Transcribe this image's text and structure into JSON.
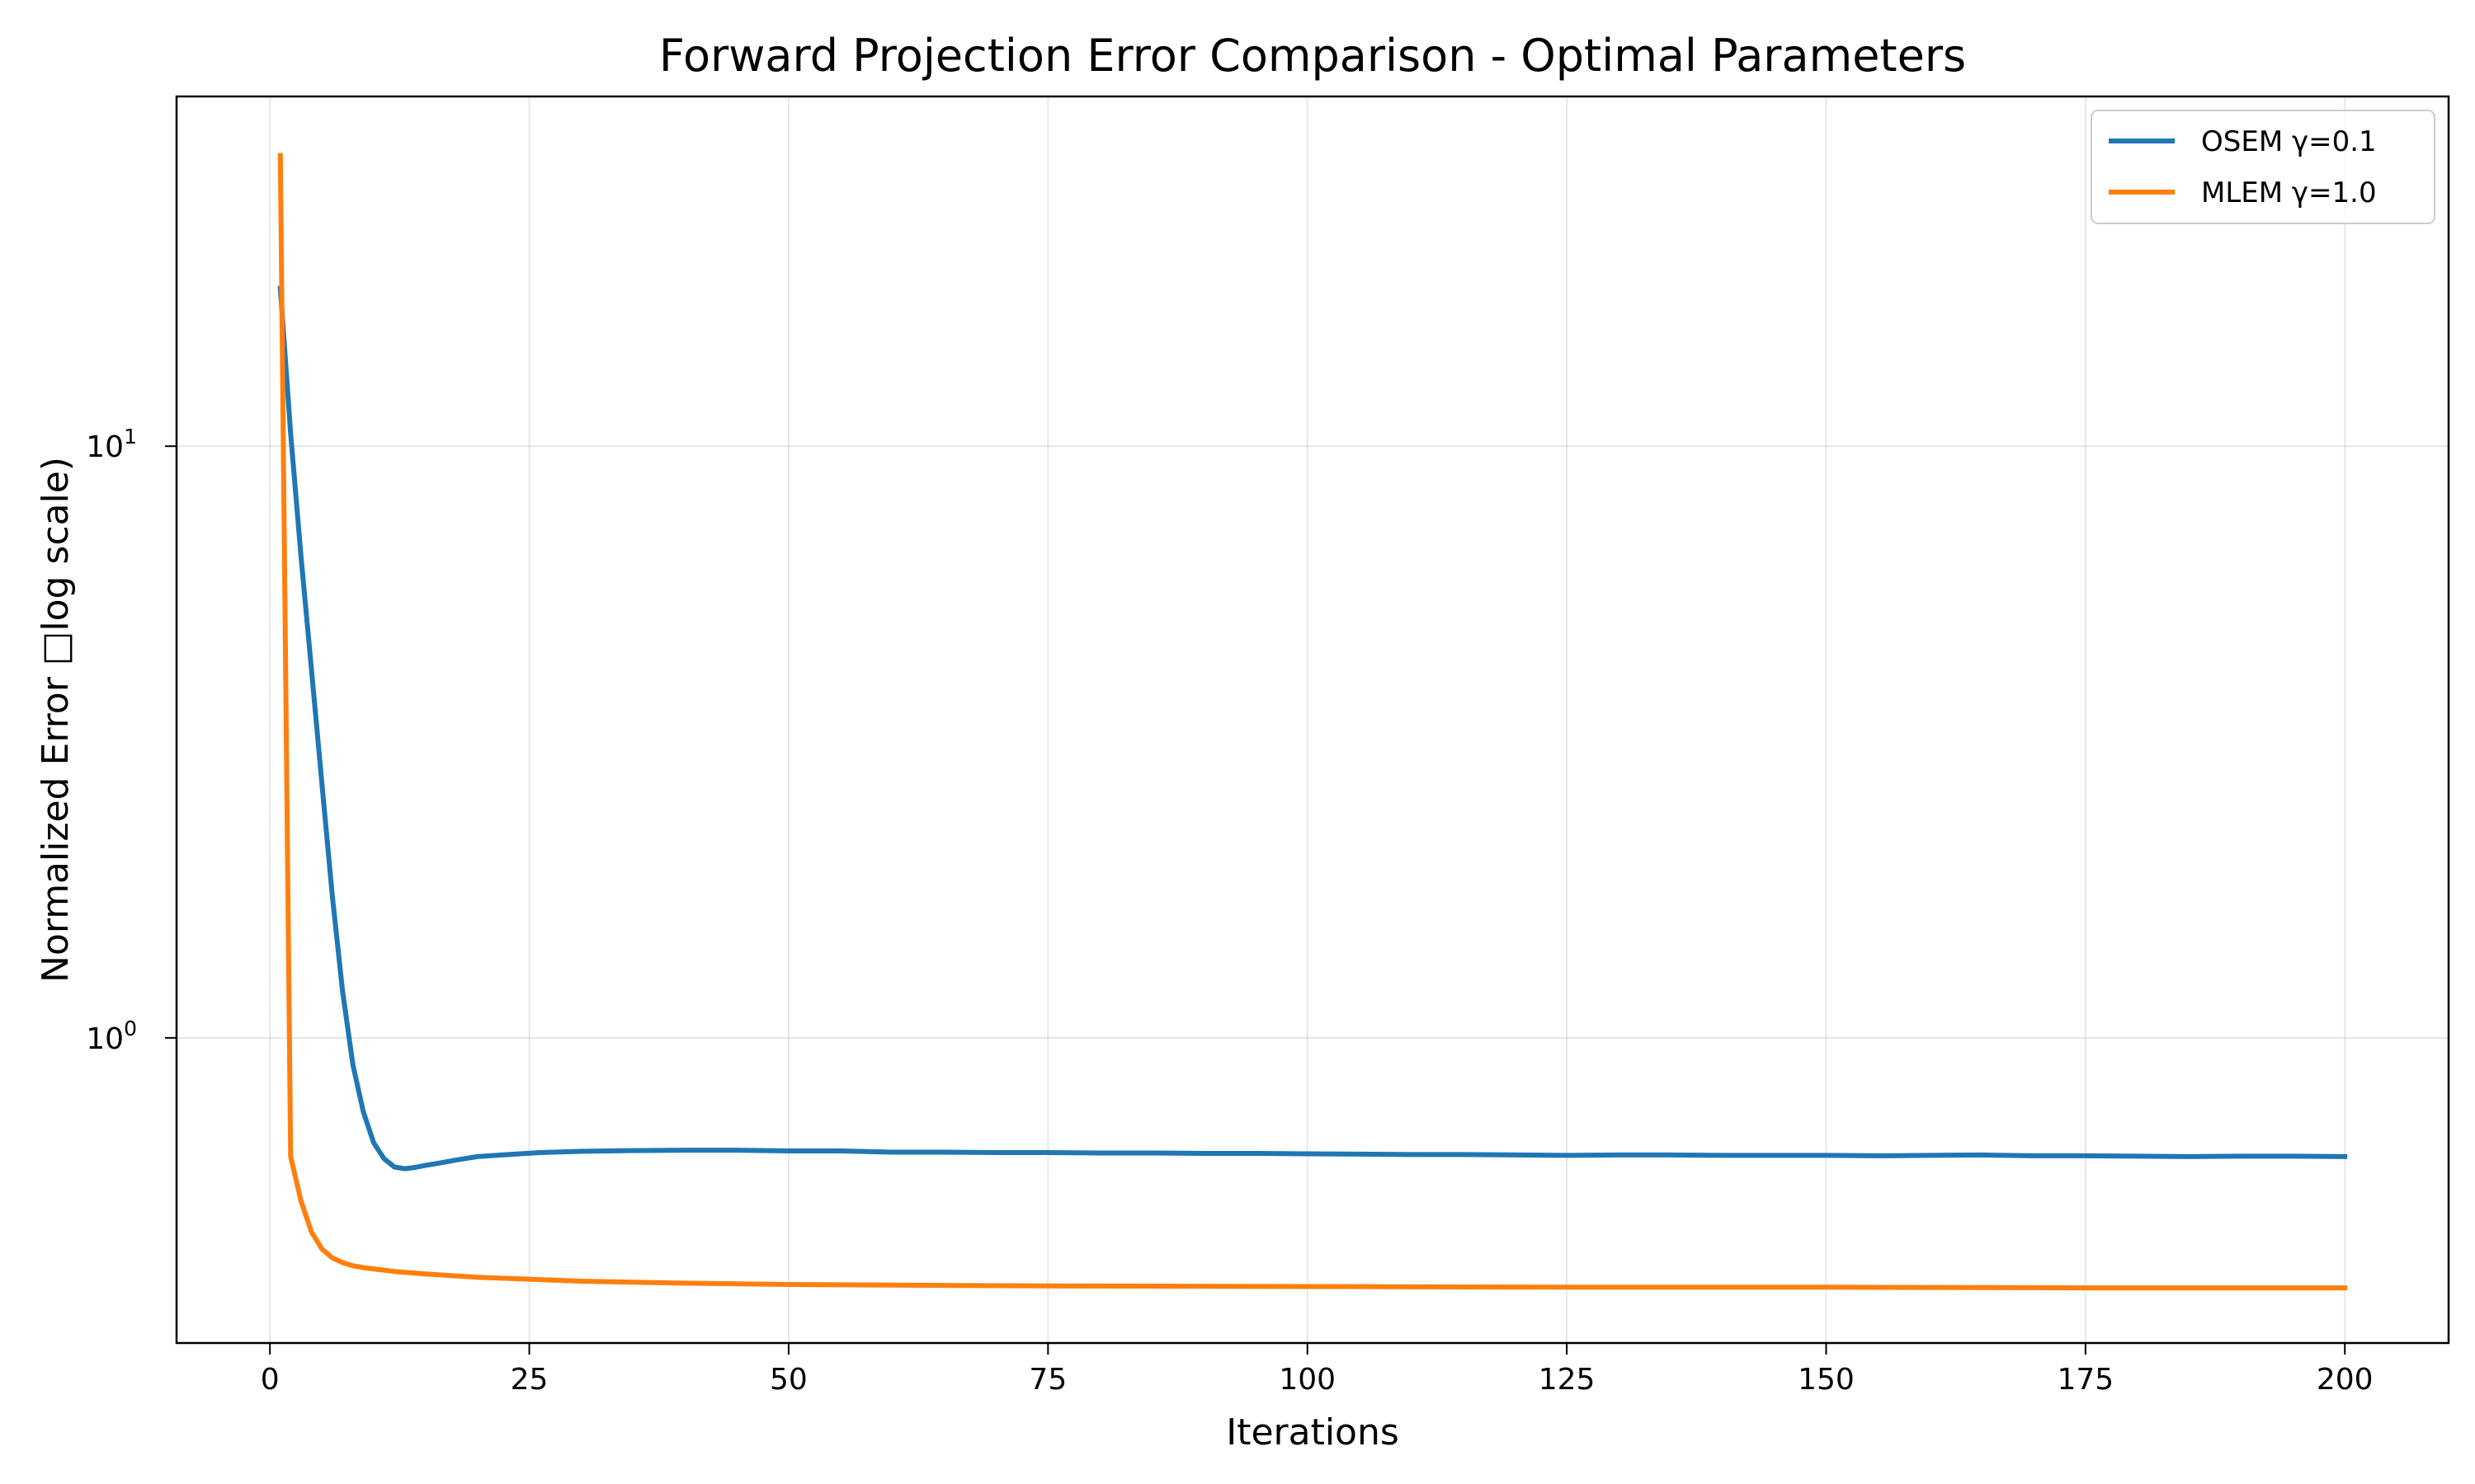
{
  "chart_data": {
    "type": "line",
    "title": "Forward Projection Error Comparison - Optimal Parameters",
    "xlabel": "Iterations",
    "ylabel": "Normalized Error □log scale)",
    "yscale": "log",
    "xlim": [
      -9,
      210
    ],
    "ylim": [
      0.305,
      39
    ],
    "grid": true,
    "legend_position": "top-right",
    "x_ticks": [
      0,
      25,
      50,
      75,
      100,
      125,
      150,
      175,
      200
    ],
    "x_tick_labels": [
      "0",
      "25",
      "50",
      "75",
      "100",
      "125",
      "150",
      "175",
      "200"
    ],
    "y_ticks": [
      {
        "value": 10,
        "base": "10",
        "exp": "1"
      },
      {
        "value": 1,
        "base": "10",
        "exp": "0"
      }
    ],
    "series": [
      {
        "name": "OSEM γ=0.1",
        "color": "#1f77b4",
        "points": [
          [
            1,
            18.5
          ],
          [
            2,
            10.5
          ],
          [
            3,
            6.5
          ],
          [
            4,
            4.2
          ],
          [
            5,
            2.7
          ],
          [
            6,
            1.75
          ],
          [
            7,
            1.2
          ],
          [
            8,
            0.9
          ],
          [
            9,
            0.75
          ],
          [
            10,
            0.665
          ],
          [
            11,
            0.625
          ],
          [
            12,
            0.605
          ],
          [
            13,
            0.601
          ],
          [
            14,
            0.604
          ],
          [
            15,
            0.609
          ],
          [
            16,
            0.613
          ],
          [
            18,
            0.622
          ],
          [
            20,
            0.63
          ],
          [
            23,
            0.635
          ],
          [
            26,
            0.64
          ],
          [
            30,
            0.643
          ],
          [
            35,
            0.645
          ],
          [
            40,
            0.646
          ],
          [
            45,
            0.646
          ],
          [
            50,
            0.644
          ],
          [
            55,
            0.644
          ],
          [
            60,
            0.641
          ],
          [
            65,
            0.641
          ],
          [
            70,
            0.64
          ],
          [
            75,
            0.64
          ],
          [
            80,
            0.639
          ],
          [
            85,
            0.639
          ],
          [
            90,
            0.638
          ],
          [
            95,
            0.638
          ],
          [
            100,
            0.637
          ],
          [
            105,
            0.636
          ],
          [
            110,
            0.635
          ],
          [
            115,
            0.635
          ],
          [
            120,
            0.634
          ],
          [
            125,
            0.633
          ],
          [
            130,
            0.634
          ],
          [
            135,
            0.634
          ],
          [
            140,
            0.633
          ],
          [
            145,
            0.633
          ],
          [
            150,
            0.633
          ],
          [
            155,
            0.632
          ],
          [
            160,
            0.633
          ],
          [
            165,
            0.634
          ],
          [
            170,
            0.632
          ],
          [
            175,
            0.632
          ],
          [
            180,
            0.631
          ],
          [
            185,
            0.63
          ],
          [
            190,
            0.631
          ],
          [
            195,
            0.631
          ],
          [
            200,
            0.63
          ]
        ]
      },
      {
        "name": "MLEM γ=1.0",
        "color": "#ff7f0e",
        "points": [
          [
            1,
            31
          ],
          [
            2,
            0.63
          ],
          [
            3,
            0.53
          ],
          [
            4,
            0.47
          ],
          [
            5,
            0.44
          ],
          [
            6,
            0.425
          ],
          [
            7,
            0.417
          ],
          [
            8,
            0.412
          ],
          [
            9,
            0.409
          ],
          [
            10,
            0.407
          ],
          [
            12,
            0.403
          ],
          [
            15,
            0.399
          ],
          [
            20,
            0.394
          ],
          [
            25,
            0.391
          ],
          [
            30,
            0.388
          ],
          [
            40,
            0.385
          ],
          [
            50,
            0.383
          ],
          [
            60,
            0.382
          ],
          [
            75,
            0.381
          ],
          [
            100,
            0.38
          ],
          [
            125,
            0.379
          ],
          [
            150,
            0.379
          ],
          [
            175,
            0.378
          ],
          [
            200,
            0.378
          ]
        ]
      }
    ]
  }
}
